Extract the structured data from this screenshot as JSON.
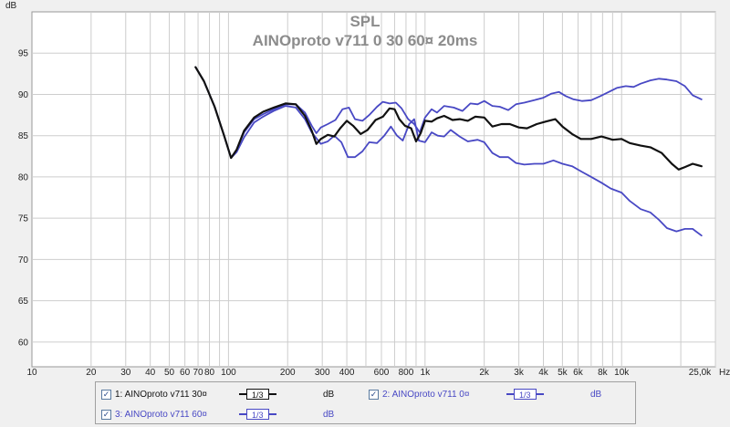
{
  "chart_data": {
    "type": "line",
    "title": "SPL",
    "subtitle": "AINOproto v711 0 30 60¤ 20ms",
    "ylabel": "dB",
    "xunit": "Hz",
    "x_scale": "log",
    "xlim": [
      10,
      30000
    ],
    "ylim": [
      57,
      100
    ],
    "grid": true,
    "y_ticks": [
      60,
      65,
      70,
      75,
      80,
      85,
      90,
      95
    ],
    "x_ticks": [
      {
        "v": 10,
        "label": "10"
      },
      {
        "v": 20,
        "label": "20"
      },
      {
        "v": 30,
        "label": "30"
      },
      {
        "v": 40,
        "label": "40"
      },
      {
        "v": 50,
        "label": "50"
      },
      {
        "v": 60,
        "label": "60"
      },
      {
        "v": 70,
        "label": "70"
      },
      {
        "v": 80,
        "label": "80"
      },
      {
        "v": 100,
        "label": "100"
      },
      {
        "v": 200,
        "label": "200"
      },
      {
        "v": 300,
        "label": "300"
      },
      {
        "v": 400,
        "label": "400"
      },
      {
        "v": 600,
        "label": "600"
      },
      {
        "v": 800,
        "label": "800"
      },
      {
        "v": 1000,
        "label": "1k"
      },
      {
        "v": 2000,
        "label": "2k"
      },
      {
        "v": 3000,
        "label": "3k"
      },
      {
        "v": 4000,
        "label": "4k"
      },
      {
        "v": 5000,
        "label": "5k"
      },
      {
        "v": 6000,
        "label": "6k"
      },
      {
        "v": 8000,
        "label": "8k"
      },
      {
        "v": 10000,
        "label": "10k"
      },
      {
        "v": 25000,
        "label": "25,0k"
      }
    ],
    "series": [
      {
        "name": "1: AINOproto v711 30¤",
        "color": "#111111",
        "points": [
          [
            68,
            93.3
          ],
          [
            75,
            91.6
          ],
          [
            85,
            88.5
          ],
          [
            95,
            85.0
          ],
          [
            103,
            82.3
          ],
          [
            110,
            83.3
          ],
          [
            120,
            85.6
          ],
          [
            135,
            87.2
          ],
          [
            150,
            87.9
          ],
          [
            170,
            88.4
          ],
          [
            195,
            88.9
          ],
          [
            220,
            88.8
          ],
          [
            245,
            87.4
          ],
          [
            265,
            85.6
          ],
          [
            280,
            84.0
          ],
          [
            295,
            84.6
          ],
          [
            320,
            85.1
          ],
          [
            345,
            84.9
          ],
          [
            370,
            85.9
          ],
          [
            400,
            86.8
          ],
          [
            430,
            86.2
          ],
          [
            470,
            85.2
          ],
          [
            510,
            85.7
          ],
          [
            560,
            86.9
          ],
          [
            610,
            87.3
          ],
          [
            660,
            88.3
          ],
          [
            700,
            88.2
          ],
          [
            740,
            87.0
          ],
          [
            790,
            86.2
          ],
          [
            850,
            85.9
          ],
          [
            900,
            84.3
          ],
          [
            950,
            85.3
          ],
          [
            1000,
            86.8
          ],
          [
            1080,
            86.7
          ],
          [
            1150,
            87.1
          ],
          [
            1250,
            87.4
          ],
          [
            1380,
            86.9
          ],
          [
            1500,
            87.0
          ],
          [
            1650,
            86.8
          ],
          [
            1800,
            87.3
          ],
          [
            2000,
            87.2
          ],
          [
            2200,
            86.1
          ],
          [
            2450,
            86.4
          ],
          [
            2700,
            86.4
          ],
          [
            3000,
            86.0
          ],
          [
            3300,
            85.9
          ],
          [
            3700,
            86.4
          ],
          [
            4100,
            86.7
          ],
          [
            4600,
            87.0
          ],
          [
            5000,
            86.1
          ],
          [
            5600,
            85.2
          ],
          [
            6200,
            84.6
          ],
          [
            7000,
            84.6
          ],
          [
            7900,
            84.9
          ],
          [
            9000,
            84.5
          ],
          [
            10000,
            84.6
          ],
          [
            11000,
            84.1
          ],
          [
            12500,
            83.8
          ],
          [
            14000,
            83.6
          ],
          [
            16000,
            82.9
          ],
          [
            18000,
            81.6
          ],
          [
            19500,
            80.9
          ],
          [
            21000,
            81.2
          ],
          [
            23000,
            81.6
          ],
          [
            25500,
            81.3
          ]
        ]
      },
      {
        "name": "2: AINOproto v711 0¤",
        "color": "#4848c4",
        "points": [
          [
            68,
            93.3
          ],
          [
            75,
            91.6
          ],
          [
            85,
            88.5
          ],
          [
            95,
            85.0
          ],
          [
            103,
            82.3
          ],
          [
            110,
            83.3
          ],
          [
            120,
            85.4
          ],
          [
            135,
            87.0
          ],
          [
            150,
            87.6
          ],
          [
            170,
            88.2
          ],
          [
            195,
            88.8
          ],
          [
            220,
            88.8
          ],
          [
            245,
            87.8
          ],
          [
            265,
            86.2
          ],
          [
            280,
            85.3
          ],
          [
            295,
            86.0
          ],
          [
            320,
            86.4
          ],
          [
            350,
            86.9
          ],
          [
            380,
            88.2
          ],
          [
            410,
            88.4
          ],
          [
            440,
            87.0
          ],
          [
            480,
            86.8
          ],
          [
            520,
            87.5
          ],
          [
            570,
            88.5
          ],
          [
            610,
            89.1
          ],
          [
            660,
            88.9
          ],
          [
            710,
            89.0
          ],
          [
            760,
            88.3
          ],
          [
            820,
            87.0
          ],
          [
            880,
            86.4
          ],
          [
            940,
            85.4
          ],
          [
            1000,
            87.2
          ],
          [
            1080,
            88.2
          ],
          [
            1150,
            87.8
          ],
          [
            1250,
            88.6
          ],
          [
            1400,
            88.4
          ],
          [
            1550,
            88.0
          ],
          [
            1700,
            88.9
          ],
          [
            1850,
            88.8
          ],
          [
            2000,
            89.2
          ],
          [
            2200,
            88.6
          ],
          [
            2400,
            88.5
          ],
          [
            2650,
            88.1
          ],
          [
            2900,
            88.8
          ],
          [
            3200,
            89.0
          ],
          [
            3600,
            89.3
          ],
          [
            4000,
            89.6
          ],
          [
            4400,
            90.1
          ],
          [
            4800,
            90.3
          ],
          [
            5200,
            89.8
          ],
          [
            5700,
            89.4
          ],
          [
            6300,
            89.2
          ],
          [
            7000,
            89.3
          ],
          [
            7800,
            89.8
          ],
          [
            8600,
            90.3
          ],
          [
            9500,
            90.8
          ],
          [
            10500,
            91.0
          ],
          [
            11500,
            90.9
          ],
          [
            12500,
            91.3
          ],
          [
            14000,
            91.7
          ],
          [
            15500,
            91.9
          ],
          [
            17000,
            91.8
          ],
          [
            19000,
            91.6
          ],
          [
            21000,
            91.0
          ],
          [
            23000,
            89.9
          ],
          [
            25500,
            89.4
          ]
        ]
      },
      {
        "name": "3: AINOproto v711 60¤",
        "color": "#4848c4",
        "points": [
          [
            68,
            93.3
          ],
          [
            75,
            91.6
          ],
          [
            85,
            88.5
          ],
          [
            95,
            85.0
          ],
          [
            103,
            82.3
          ],
          [
            110,
            83.0
          ],
          [
            120,
            84.8
          ],
          [
            135,
            86.6
          ],
          [
            150,
            87.3
          ],
          [
            170,
            88.0
          ],
          [
            195,
            88.6
          ],
          [
            220,
            88.4
          ],
          [
            245,
            87.0
          ],
          [
            265,
            85.4
          ],
          [
            280,
            84.7
          ],
          [
            295,
            84.0
          ],
          [
            320,
            84.3
          ],
          [
            345,
            85.0
          ],
          [
            375,
            84.2
          ],
          [
            405,
            82.4
          ],
          [
            440,
            82.4
          ],
          [
            480,
            83.1
          ],
          [
            520,
            84.2
          ],
          [
            570,
            84.1
          ],
          [
            620,
            85.0
          ],
          [
            670,
            86.1
          ],
          [
            720,
            85.0
          ],
          [
            770,
            84.4
          ],
          [
            830,
            86.4
          ],
          [
            880,
            87.0
          ],
          [
            930,
            84.4
          ],
          [
            1000,
            84.2
          ],
          [
            1080,
            85.4
          ],
          [
            1160,
            85.0
          ],
          [
            1250,
            84.9
          ],
          [
            1350,
            85.7
          ],
          [
            1500,
            84.9
          ],
          [
            1650,
            84.3
          ],
          [
            1850,
            84.5
          ],
          [
            2000,
            84.2
          ],
          [
            2200,
            82.9
          ],
          [
            2400,
            82.4
          ],
          [
            2650,
            82.4
          ],
          [
            2900,
            81.7
          ],
          [
            3200,
            81.5
          ],
          [
            3600,
            81.6
          ],
          [
            4000,
            81.6
          ],
          [
            4500,
            82.0
          ],
          [
            5000,
            81.6
          ],
          [
            5600,
            81.3
          ],
          [
            6300,
            80.6
          ],
          [
            7000,
            80.0
          ],
          [
            7900,
            79.3
          ],
          [
            8800,
            78.6
          ],
          [
            10000,
            78.1
          ],
          [
            11000,
            77.1
          ],
          [
            12500,
            76.1
          ],
          [
            14000,
            75.7
          ],
          [
            15500,
            74.8
          ],
          [
            17000,
            73.8
          ],
          [
            19000,
            73.4
          ],
          [
            21000,
            73.7
          ],
          [
            23000,
            73.7
          ],
          [
            25500,
            72.9
          ]
        ]
      }
    ]
  },
  "legend": {
    "items": [
      {
        "checked": "✓",
        "label": "1: AINOproto v711 30¤",
        "smoothing": "1/3",
        "unit": "dB"
      },
      {
        "checked": "✓",
        "label": "2: AINOproto v711 0¤",
        "smoothing": "1/3",
        "unit": "dB"
      },
      {
        "checked": "✓",
        "label": "3: AINOproto v711 60¤",
        "smoothing": "1/3",
        "unit": "dB"
      }
    ]
  }
}
